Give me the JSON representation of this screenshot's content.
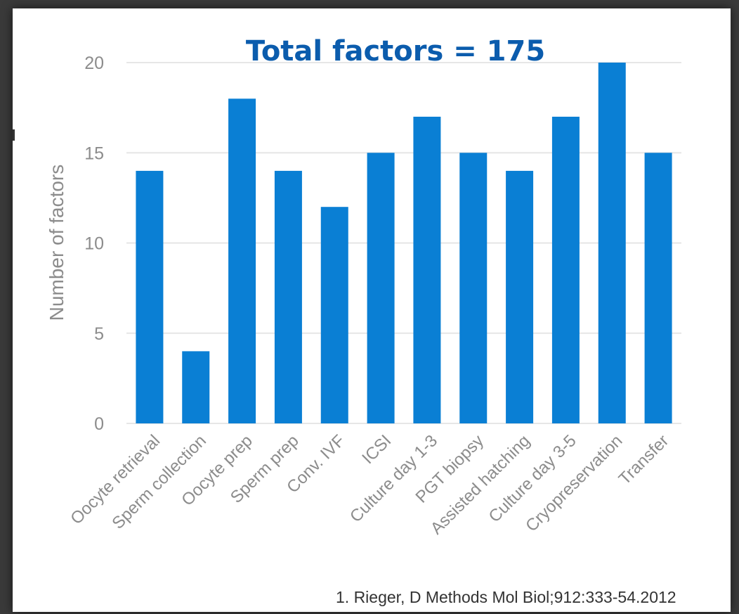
{
  "chart_data": {
    "type": "bar",
    "title": "Total factors = 175",
    "ylabel": "Number of factors",
    "xlabel": "",
    "ylim": [
      0,
      20
    ],
    "yticks": [
      0,
      5,
      10,
      15,
      20
    ],
    "grid": true,
    "categories": [
      "Oocyte retrieval",
      "Sperm collection",
      "Oocyte prep",
      "Sperm prep",
      "Conv. IVF",
      "ICSI",
      "Culture day 1-3",
      "PGT biopsy",
      "Assisted hatching",
      "Culture day 3-5",
      "Cryopreservation",
      "Transfer"
    ],
    "values": [
      14,
      4,
      18,
      14,
      12,
      15,
      17,
      15,
      14,
      17,
      20,
      15
    ],
    "bar_color": "#0a7fd4",
    "grid_color": "#e6e6e6"
  },
  "citation": "1. Rieger, D  Methods Mol Biol;912:333-54.2012"
}
